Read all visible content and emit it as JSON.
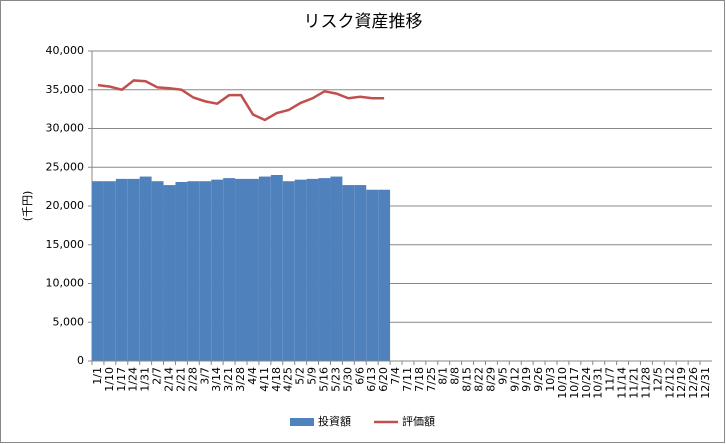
{
  "chart_data": {
    "type": "bar_line",
    "title": "リスク資産推移",
    "y_label": "(千円)",
    "categories": [
      "1/1",
      "1/10",
      "1/17",
      "1/24",
      "1/31",
      "2/7",
      "2/14",
      "2/21",
      "2/28",
      "3/7",
      "3/14",
      "3/21",
      "3/28",
      "4/4",
      "4/11",
      "4/18",
      "4/25",
      "5/2",
      "5/9",
      "5/16",
      "5/23",
      "5/30",
      "6/6",
      "6/13",
      "6/20",
      "7/4",
      "7/11",
      "7/18",
      "7/25",
      "8/1",
      "8/8",
      "8/15",
      "8/22",
      "8/29",
      "9/5",
      "9/12",
      "9/19",
      "9/26",
      "10/3",
      "10/10",
      "10/17",
      "10/24",
      "10/31",
      "11/7",
      "11/14",
      "11/21",
      "11/28",
      "12/5",
      "12/12",
      "12/19",
      "12/26",
      "12/31"
    ],
    "series": [
      {
        "name": "投資額",
        "type": "bar",
        "color": "#4f81bd",
        "values": [
          23200,
          23200,
          23500,
          23500,
          23800,
          23200,
          22700,
          23100,
          23200,
          23200,
          23400,
          23600,
          23500,
          23500,
          23800,
          24000,
          23200,
          23400,
          23500,
          23600,
          23800,
          22700,
          22700,
          22100,
          22100,
          null,
          null,
          null,
          null,
          null,
          null,
          null,
          null,
          null,
          null,
          null,
          null,
          null,
          null,
          null,
          null,
          null,
          null,
          null,
          null,
          null,
          null,
          null,
          null,
          null,
          null,
          null
        ]
      },
      {
        "name": "評価額",
        "type": "line",
        "color": "#c0504d",
        "values": [
          35600,
          35400,
          35000,
          36200,
          36100,
          35300,
          35200,
          35000,
          34000,
          33500,
          33200,
          34300,
          34300,
          31800,
          31100,
          32000,
          32400,
          33300,
          33900,
          34800,
          34500,
          33900,
          34100,
          33900,
          33900,
          null,
          null,
          null,
          null,
          null,
          null,
          null,
          null,
          null,
          null,
          null,
          null,
          null,
          null,
          null,
          null,
          null,
          null,
          null,
          null,
          null,
          null,
          null,
          null,
          null,
          null,
          null
        ]
      }
    ],
    "ylim": [
      0,
      40000
    ],
    "yticks": [
      0,
      {
        "value": 5000,
        "label": "5,000"
      },
      {
        "value": 10000,
        "label": "10,000"
      },
      {
        "value": 15000,
        "label": "15,000"
      },
      {
        "value": 20000,
        "label": "20,000"
      },
      {
        "value": 25000,
        "label": "25,000"
      },
      {
        "value": 30000,
        "label": "30,000"
      },
      {
        "value": 35000,
        "label": "35,000"
      },
      {
        "value": 40000,
        "label": "40,000"
      }
    ],
    "grid": true,
    "legend": "bottom"
  }
}
